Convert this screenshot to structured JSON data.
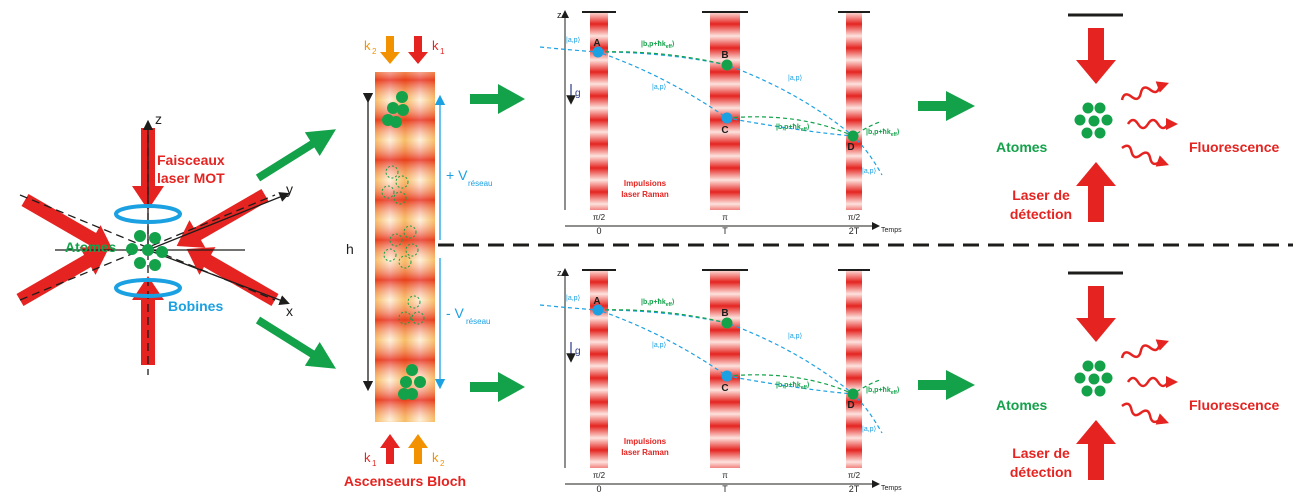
{
  "colors": {
    "red": "#e52421",
    "green": "#13a24a",
    "blue": "#1ba1e2",
    "orange": "#f39200",
    "black": "#1d1d1b"
  },
  "mot": {
    "axis_z": "z",
    "axis_y": "y",
    "axis_x": "x",
    "beams_label_1": "Faisceaux",
    "beams_label_2": "laser MOT",
    "atoms_label": "Atomes",
    "coils_label": "Bobines"
  },
  "bloch": {
    "k2_top": "k",
    "k2_top_sub": "2",
    "k1_top": "k",
    "k1_top_sub": "1",
    "k1_bottom": "k",
    "k1_bottom_sub": "1",
    "k2_bottom": "k",
    "k2_bottom_sub": "2",
    "height_label": "h",
    "v_up": "+ V",
    "v_up_sub": "réseau",
    "v_down": "- V",
    "v_down_sub": "réseau",
    "title": "Ascenseurs Bloch"
  },
  "interferometer": {
    "axis_z": "z",
    "gravity": "g",
    "time_label": "Temps",
    "ticks": [
      "0",
      "T",
      "2T"
    ],
    "pulses": [
      "π/2",
      "π",
      "π/2"
    ],
    "points": [
      "A",
      "B",
      "C",
      "D"
    ],
    "state_a": "|a,p⟩",
    "state_b": "|b,p+ħk",
    "state_b_sub": "eff",
    "state_close": "⟩",
    "raman_label_1": "Impulsions",
    "raman_label_2": "laser Raman"
  },
  "detection": {
    "atoms_label": "Atomes",
    "fluorescence_label": "Fluorescence",
    "laser_label_1": "Laser de",
    "laser_label_2": "détection"
  }
}
